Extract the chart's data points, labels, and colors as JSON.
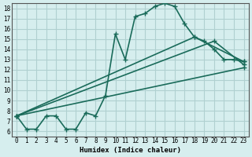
{
  "title": "",
  "xlabel": "Humidex (Indice chaleur)",
  "ylabel": "",
  "background_color": "#d6eeee",
  "grid_color": "#b0d0d0",
  "line_color": "#1a6b5a",
  "xlim": [
    -0.5,
    23.5
  ],
  "ylim": [
    5.5,
    18.5
  ],
  "xticks": [
    0,
    1,
    2,
    3,
    4,
    5,
    6,
    7,
    8,
    9,
    10,
    11,
    12,
    13,
    14,
    15,
    16,
    17,
    18,
    19,
    20,
    21,
    22,
    23
  ],
  "yticks": [
    6,
    7,
    8,
    9,
    10,
    11,
    12,
    13,
    14,
    15,
    16,
    17,
    18
  ],
  "line1_x": [
    0,
    1,
    2,
    3,
    4,
    5,
    6,
    7,
    8,
    9,
    10,
    11,
    12,
    13,
    14,
    15,
    16,
    17,
    18,
    19,
    20,
    21,
    22,
    23
  ],
  "line1_y": [
    7.5,
    6.2,
    6.2,
    7.5,
    7.5,
    6.2,
    6.2,
    7.8,
    7.5,
    9.5,
    15.5,
    13.0,
    17.2,
    17.5,
    18.2,
    18.5,
    18.2,
    16.5,
    15.2,
    14.8,
    14.0,
    13.0,
    13.0,
    12.8
  ],
  "line2_x": [
    0,
    18,
    23
  ],
  "line2_y": [
    7.5,
    15.2,
    12.8
  ],
  "line3_x": [
    0,
    20,
    23
  ],
  "line3_y": [
    7.5,
    14.8,
    12.5
  ],
  "line4_x": [
    0,
    23
  ],
  "line4_y": [
    7.5,
    12.2
  ],
  "marker_size": 3,
  "line_width": 1.2
}
